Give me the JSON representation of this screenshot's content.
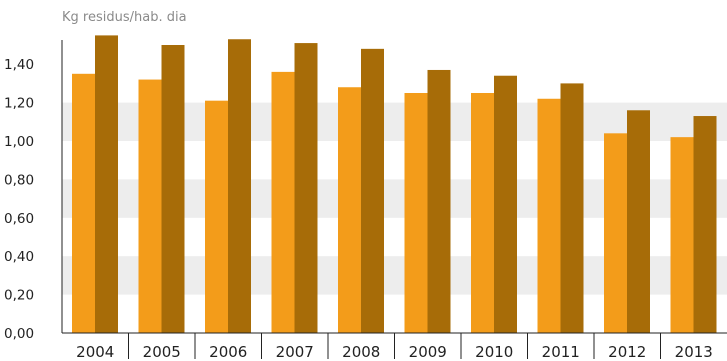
{
  "chart_data": {
    "type": "bar",
    "ylabel": "Kg residus/hab. dia",
    "xlabel": "",
    "categories": [
      "2004",
      "2005",
      "2006",
      "2007",
      "2008",
      "2009",
      "2010",
      "2011",
      "2012",
      "2013"
    ],
    "series": [
      {
        "values": [
          1.35,
          1.32,
          1.21,
          1.36,
          1.28,
          1.25,
          1.25,
          1.22,
          1.04,
          1.02
        ]
      },
      {
        "values": [
          1.55,
          1.5,
          1.53,
          1.51,
          1.48,
          1.37,
          1.34,
          1.3,
          1.16,
          1.13
        ]
      }
    ],
    "ylim": [
      0,
      1.6
    ],
    "yticks": [
      0.0,
      0.2,
      0.4,
      0.6,
      0.8,
      1.0,
      1.2,
      1.4
    ],
    "ytick_labels": [
      "0,00",
      "0,20",
      "0,40",
      "0,60",
      "0,80",
      "1,00",
      "1,20",
      "1,40"
    ],
    "grid": "alternating horizontal bands",
    "legend": "none"
  },
  "colors": {
    "series_1": "#F39C1A",
    "series_2": "#A76C08",
    "band": "#EDEDED",
    "axis": "#222222"
  }
}
